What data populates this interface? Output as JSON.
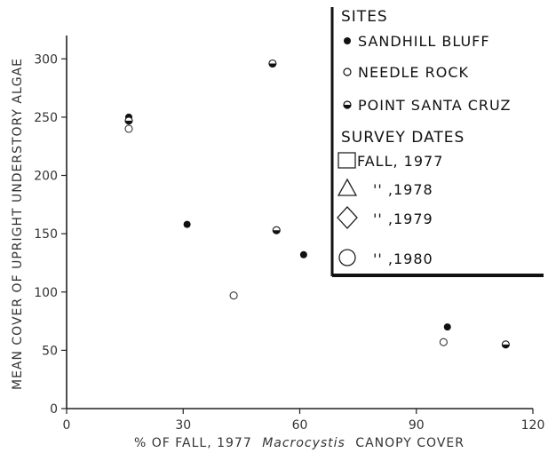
{
  "chart_data": {
    "type": "scatter",
    "xlabel_prefix": "% OF FALL, 1977",
    "xlabel_italic": "Macrocystis",
    "xlabel_suffix": "CANOPY COVER",
    "ylabel": "MEAN COVER OF UPRIGHT UNDERSTORY ALGAE",
    "xlim": [
      0,
      120
    ],
    "ylim": [
      0,
      320
    ],
    "xticks": [
      "0",
      "30",
      "60",
      "90",
      "120"
    ],
    "xtick_values": [
      0,
      30,
      60,
      90,
      120
    ],
    "yticks": [
      "0",
      "50",
      "100",
      "150",
      "200",
      "250",
      "300"
    ],
    "ytick_values": [
      0,
      50,
      100,
      150,
      200,
      250,
      300
    ],
    "grid": false,
    "legend_placement": "top-right",
    "legend": {
      "sites_heading": "SITES",
      "sites": [
        {
          "label": "SANDHILL BLUFF",
          "marker": "filled-circle"
        },
        {
          "label": "NEEDLE ROCK",
          "marker": "open-circle"
        },
        {
          "label": "POINT SANTA CRUZ",
          "marker": "half-filled-circle"
        }
      ],
      "dates_heading": "SURVEY DATES",
      "dates": [
        {
          "label": "FALL, 1977",
          "marker": "square"
        },
        {
          "label": "'' ,1978",
          "marker": "triangle"
        },
        {
          "label": "'' ,1979",
          "marker": "diamond"
        },
        {
          "label": "'' ,1980",
          "marker": "circle"
        }
      ]
    },
    "series": [
      {
        "site": "SANDHILL BLUFF",
        "marker": "filled-circle",
        "points": [
          {
            "x": 16,
            "y": 250
          },
          {
            "x": 31,
            "y": 158
          },
          {
            "x": 61,
            "y": 132
          },
          {
            "x": 98,
            "y": 70
          }
        ]
      },
      {
        "site": "NEEDLE ROCK",
        "marker": "open-circle",
        "points": [
          {
            "x": 16,
            "y": 240
          },
          {
            "x": 43,
            "y": 97
          },
          {
            "x": 97,
            "y": 57
          }
        ]
      },
      {
        "site": "POINT SANTA CRUZ",
        "marker": "half-filled-circle",
        "points": [
          {
            "x": 16,
            "y": 247
          },
          {
            "x": 53,
            "y": 296
          },
          {
            "x": 54,
            "y": 153
          },
          {
            "x": 113,
            "y": 55
          }
        ]
      }
    ]
  }
}
